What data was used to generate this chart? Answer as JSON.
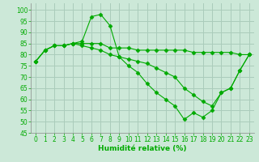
{
  "xlabel": "Humidité relative (%)",
  "background_color": "#cce8d8",
  "grid_color": "#aaccbb",
  "line_color": "#00aa00",
  "marker": "D",
  "marker_size": 2.5,
  "xlim": [
    -0.5,
    23.5
  ],
  "ylim": [
    45,
    103
  ],
  "yticks": [
    45,
    50,
    55,
    60,
    65,
    70,
    75,
    80,
    85,
    90,
    95,
    100
  ],
  "xticks": [
    0,
    1,
    2,
    3,
    4,
    5,
    6,
    7,
    8,
    9,
    10,
    11,
    12,
    13,
    14,
    15,
    16,
    17,
    18,
    19,
    20,
    21,
    22,
    23
  ],
  "series": [
    [
      77,
      82,
      84,
      84,
      85,
      86,
      97,
      98,
      93,
      79,
      75,
      72,
      67,
      63,
      60,
      57,
      51,
      54,
      52,
      55,
      63,
      65,
      73,
      80
    ],
    [
      77,
      82,
      84,
      84,
      85,
      85,
      85,
      85,
      83,
      83,
      83,
      82,
      82,
      82,
      82,
      82,
      82,
      81,
      81,
      81,
      81,
      81,
      80,
      80
    ],
    [
      77,
      82,
      84,
      84,
      85,
      84,
      83,
      82,
      80,
      79,
      78,
      77,
      76,
      74,
      72,
      70,
      65,
      62,
      59,
      57,
      63,
      65,
      73,
      80
    ]
  ],
  "xlabel_fontsize": 6.5,
  "tick_fontsize": 5.5
}
